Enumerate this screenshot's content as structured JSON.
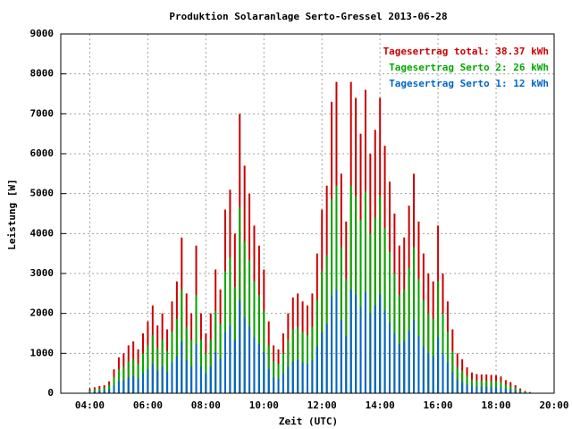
{
  "chart_data": {
    "type": "impulse",
    "title": "Produktion Solaranlage Serto-Gressel 2013-06-28",
    "x_label": "Zeit (UTC)",
    "y_label": "Leistung [W]",
    "x": [
      "04:00",
      "04:10",
      "04:20",
      "04:30",
      "04:40",
      "04:50",
      "05:00",
      "05:10",
      "05:20",
      "05:30",
      "05:40",
      "05:50",
      "06:00",
      "06:10",
      "06:20",
      "06:30",
      "06:40",
      "06:50",
      "07:00",
      "07:10",
      "07:20",
      "07:30",
      "07:40",
      "07:50",
      "08:00",
      "08:10",
      "08:20",
      "08:30",
      "08:40",
      "08:50",
      "09:00",
      "09:10",
      "09:20",
      "09:30",
      "09:40",
      "09:50",
      "10:00",
      "10:10",
      "10:20",
      "10:30",
      "10:40",
      "10:50",
      "11:00",
      "11:10",
      "11:20",
      "11:30",
      "11:40",
      "11:50",
      "12:00",
      "12:10",
      "12:20",
      "12:30",
      "12:40",
      "12:50",
      "13:00",
      "13:10",
      "13:20",
      "13:30",
      "13:40",
      "13:50",
      "14:00",
      "14:10",
      "14:20",
      "14:30",
      "14:40",
      "14:50",
      "15:00",
      "15:10",
      "15:20",
      "15:30",
      "15:40",
      "15:50",
      "16:00",
      "16:10",
      "16:20",
      "16:30",
      "16:40",
      "16:50",
      "17:00",
      "17:10",
      "17:20",
      "17:30",
      "17:40",
      "17:50",
      "18:00",
      "18:10",
      "18:20",
      "18:30",
      "18:40",
      "18:50",
      "19:00",
      "19:10",
      "19:20"
    ],
    "series": [
      {
        "name": "Tagesertrag total: 38.37 kWh",
        "color": "#cc0000",
        "values": [
          100,
          150,
          180,
          200,
          300,
          600,
          900,
          1000,
          1200,
          1300,
          1100,
          1500,
          1800,
          2200,
          1700,
          2000,
          1600,
          2300,
          2800,
          3900,
          2500,
          2000,
          3700,
          2000,
          1500,
          2000,
          3100,
          2600,
          4600,
          5100,
          4000,
          7000,
          5700,
          5000,
          4200,
          3700,
          3100,
          1800,
          1200,
          1100,
          1500,
          2000,
          2400,
          2500,
          2300,
          2200,
          2500,
          3500,
          4600,
          5200,
          7300,
          7800,
          5500,
          4300,
          7800,
          7400,
          6500,
          7600,
          6000,
          6600,
          7400,
          6200,
          5300,
          4500,
          3700,
          3900,
          4700,
          5500,
          4300,
          3500,
          3000,
          2800,
          4200,
          3000,
          2300,
          1600,
          1000,
          850,
          650,
          520,
          480,
          470,
          470,
          460,
          450,
          420,
          330,
          280,
          200,
          120,
          60,
          30,
          10
        ]
      },
      {
        "name": "Tagesertrag Serto 2: 26 kWh",
        "color": "#00aa00",
        "values": [
          60,
          100,
          120,
          140,
          200,
          400,
          600,
          660,
          800,
          860,
          740,
          1000,
          1200,
          1460,
          1140,
          1340,
          1060,
          1540,
          1860,
          2600,
          1660,
          1340,
          2460,
          1340,
          1000,
          1340,
          2060,
          1740,
          3060,
          3400,
          2660,
          4660,
          3800,
          3340,
          2800,
          2460,
          2060,
          1200,
          800,
          740,
          1000,
          1340,
          1600,
          1660,
          1540,
          1460,
          1660,
          2340,
          3060,
          3460,
          4860,
          5200,
          3660,
          2860,
          5200,
          4940,
          4340,
          5060,
          4000,
          4400,
          4940,
          4140,
          3540,
          3000,
          2460,
          2600,
          3140,
          3660,
          2860,
          2340,
          2000,
          1860,
          2800,
          2000,
          1540,
          1060,
          660,
          560,
          440,
          340,
          320,
          320,
          320,
          300,
          300,
          280,
          220,
          180,
          140,
          80,
          40,
          20,
          0
        ]
      },
      {
        "name": "Tagesertrag Serto 1: 12 kWh",
        "color": "#0066cc",
        "values": [
          30,
          50,
          60,
          70,
          100,
          200,
          300,
          330,
          400,
          430,
          370,
          500,
          600,
          730,
          570,
          670,
          530,
          770,
          930,
          1300,
          830,
          670,
          1230,
          670,
          500,
          670,
          1030,
          870,
          1530,
          1700,
          1330,
          2330,
          1900,
          1670,
          1400,
          1230,
          1030,
          600,
          400,
          370,
          500,
          670,
          800,
          830,
          770,
          730,
          830,
          1170,
          1530,
          1730,
          2430,
          2600,
          1830,
          1430,
          2600,
          2470,
          2170,
          2530,
          2000,
          2200,
          2470,
          2070,
          1770,
          1500,
          1230,
          1300,
          1570,
          1830,
          1430,
          1170,
          1000,
          930,
          1400,
          1000,
          770,
          530,
          330,
          280,
          220,
          170,
          160,
          160,
          160,
          150,
          150,
          140,
          110,
          90,
          70,
          40,
          20,
          10,
          0
        ]
      }
    ],
    "xlim": [
      "03:00",
      "20:00"
    ],
    "xticks": [
      "04:00",
      "06:00",
      "08:00",
      "10:00",
      "12:00",
      "14:00",
      "16:00",
      "18:00",
      "20:00"
    ],
    "ylim": [
      0,
      9000
    ],
    "yticks": [
      0,
      1000,
      2000,
      3000,
      4000,
      5000,
      6000,
      7000,
      8000,
      9000
    ],
    "grid": true,
    "legend": "top-right"
  }
}
